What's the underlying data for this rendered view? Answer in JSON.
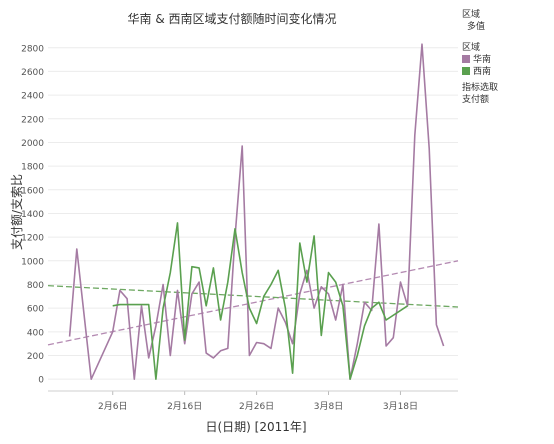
{
  "chart_data": {
    "type": "line",
    "title": "华南 & 西南区域支付额随时间变化情况",
    "xlabel": "日(日期) [2011年]",
    "ylabel": "支付额/支索比",
    "xlim": [
      "2011-01-28",
      "2011-03-26"
    ],
    "ylim": [
      -100,
      2950
    ],
    "y_ticks": [
      0,
      200,
      400,
      600,
      800,
      1000,
      1200,
      1400,
      1600,
      1800,
      2000,
      2200,
      2400,
      2600,
      2800
    ],
    "x_ticks": [
      {
        "date": "2011-02-06",
        "label": "2月6日"
      },
      {
        "date": "2011-02-16",
        "label": "2月16日"
      },
      {
        "date": "2011-02-26",
        "label": "2月26日"
      },
      {
        "date": "2011-03-08",
        "label": "3月8日"
      },
      {
        "date": "2011-03-18",
        "label": "3月18日"
      }
    ],
    "grid": "horizontal",
    "series": [
      {
        "name": "华南",
        "color": "#a57ba3",
        "trend_color": "#b48ab2",
        "trend": [
          [
            "2011-01-28",
            290
          ],
          [
            "2011-03-26",
            1000
          ]
        ],
        "points": [
          [
            "2011-01-31",
            360
          ],
          [
            "2011-02-01",
            1100
          ],
          [
            "2011-02-03",
            0
          ],
          [
            "2011-02-06",
            400
          ],
          [
            "2011-02-07",
            750
          ],
          [
            "2011-02-08",
            680
          ],
          [
            "2011-02-09",
            0
          ],
          [
            "2011-02-10",
            620
          ],
          [
            "2011-02-11",
            180
          ],
          [
            "2011-02-12",
            450
          ],
          [
            "2011-02-13",
            800
          ],
          [
            "2011-02-14",
            200
          ],
          [
            "2011-02-15",
            750
          ],
          [
            "2011-02-16",
            300
          ],
          [
            "2011-02-17",
            720
          ],
          [
            "2011-02-18",
            820
          ],
          [
            "2011-02-19",
            220
          ],
          [
            "2011-02-20",
            180
          ],
          [
            "2011-02-21",
            240
          ],
          [
            "2011-02-22",
            260
          ],
          [
            "2011-02-23",
            1200
          ],
          [
            "2011-02-24",
            1970
          ],
          [
            "2011-02-25",
            200
          ],
          [
            "2011-02-26",
            310
          ],
          [
            "2011-02-27",
            300
          ],
          [
            "2011-02-28",
            260
          ],
          [
            "2011-03-01",
            600
          ],
          [
            "2011-03-02",
            480
          ],
          [
            "2011-03-03",
            300
          ],
          [
            "2011-03-04",
            720
          ],
          [
            "2011-03-05",
            920
          ],
          [
            "2011-03-06",
            600
          ],
          [
            "2011-03-07",
            780
          ],
          [
            "2011-03-08",
            720
          ],
          [
            "2011-03-09",
            500
          ],
          [
            "2011-03-10",
            800
          ],
          [
            "2011-03-11",
            0
          ],
          [
            "2011-03-12",
            300
          ],
          [
            "2011-03-13",
            650
          ],
          [
            "2011-03-14",
            580
          ],
          [
            "2011-03-15",
            1310
          ],
          [
            "2011-03-16",
            280
          ],
          [
            "2011-03-17",
            350
          ],
          [
            "2011-03-18",
            820
          ],
          [
            "2011-03-19",
            620
          ],
          [
            "2011-03-20",
            2060
          ],
          [
            "2011-03-21",
            2830
          ],
          [
            "2011-03-22",
            1950
          ],
          [
            "2011-03-23",
            460
          ],
          [
            "2011-03-24",
            280
          ]
        ]
      },
      {
        "name": "西南",
        "color": "#5aa04f",
        "trend_color": "#6ea862",
        "trend": [
          [
            "2011-01-28",
            790
          ],
          [
            "2011-03-26",
            610
          ]
        ],
        "points": [
          [
            "2011-02-06",
            620
          ],
          [
            "2011-02-07",
            630
          ],
          [
            "2011-02-08",
            630
          ],
          [
            "2011-02-09",
            630
          ],
          [
            "2011-02-10",
            630
          ],
          [
            "2011-02-11",
            630
          ],
          [
            "2011-02-12",
            0
          ],
          [
            "2011-02-13",
            600
          ],
          [
            "2011-02-14",
            900
          ],
          [
            "2011-02-15",
            1320
          ],
          [
            "2011-02-16",
            330
          ],
          [
            "2011-02-17",
            950
          ],
          [
            "2011-02-18",
            940
          ],
          [
            "2011-02-19",
            620
          ],
          [
            "2011-02-20",
            940
          ],
          [
            "2011-02-21",
            500
          ],
          [
            "2011-02-22",
            820
          ],
          [
            "2011-02-23",
            1270
          ],
          [
            "2011-02-24",
            900
          ],
          [
            "2011-02-25",
            600
          ],
          [
            "2011-02-26",
            470
          ],
          [
            "2011-02-27",
            700
          ],
          [
            "2011-02-28",
            800
          ],
          [
            "2011-03-01",
            920
          ],
          [
            "2011-03-02",
            600
          ],
          [
            "2011-03-03",
            50
          ],
          [
            "2011-03-04",
            1150
          ],
          [
            "2011-03-05",
            820
          ],
          [
            "2011-03-06",
            1210
          ],
          [
            "2011-03-07",
            370
          ],
          [
            "2011-03-08",
            900
          ],
          [
            "2011-03-09",
            820
          ],
          [
            "2011-03-10",
            620
          ],
          [
            "2011-03-11",
            0
          ],
          [
            "2011-03-12",
            200
          ],
          [
            "2011-03-13",
            450
          ],
          [
            "2011-03-14",
            600
          ],
          [
            "2011-03-15",
            650
          ],
          [
            "2011-03-16",
            500
          ],
          [
            "2011-03-19",
            620
          ]
        ]
      }
    ]
  },
  "sidebar": {
    "filter_label": "区域",
    "filter_value": "多值",
    "legend_label": "区域",
    "legend_items": [
      {
        "label": "华南",
        "color": "#a57ba3"
      },
      {
        "label": "西南",
        "color": "#5aa04f"
      }
    ],
    "metric_label": "指标选取",
    "metric_value": "支付额"
  }
}
